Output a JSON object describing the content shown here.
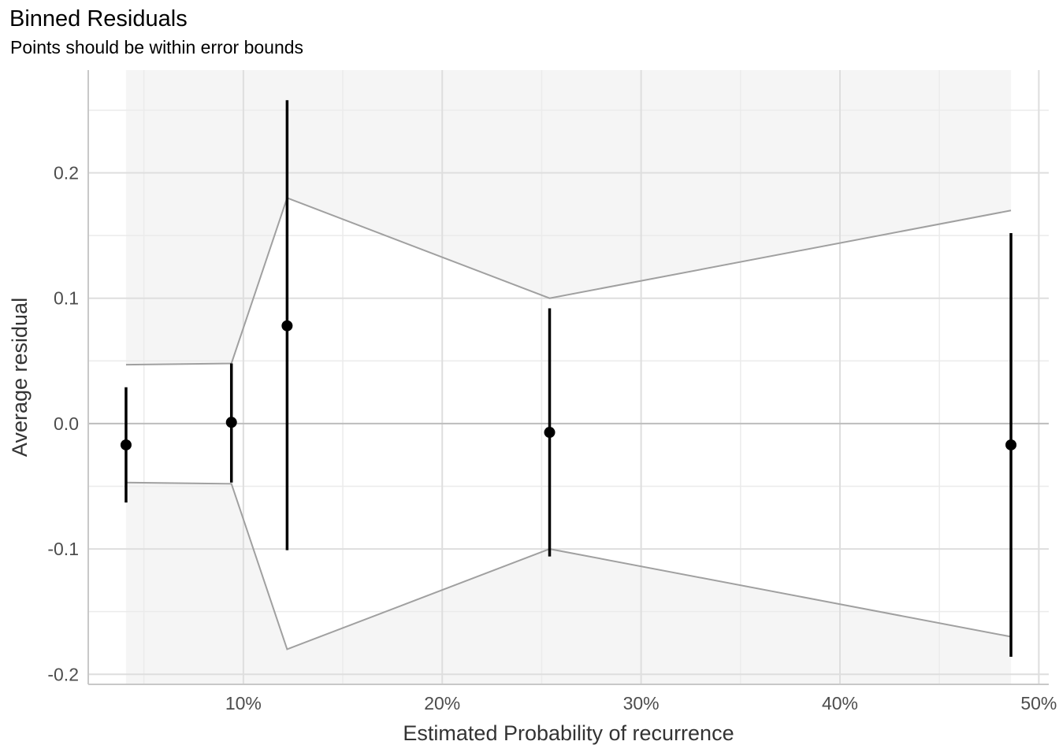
{
  "chart_data": {
    "type": "scatter",
    "title": "Binned Residuals",
    "subtitle": "Points should be within error bounds",
    "xlabel": "Estimated Probability of recurrence",
    "ylabel": "Average residual",
    "xlim": [
      0.022,
      0.505
    ],
    "ylim": [
      -0.208,
      0.282
    ],
    "x_ticks": [
      {
        "value": 0.1,
        "label": "10%"
      },
      {
        "value": 0.2,
        "label": "20%"
      },
      {
        "value": 0.3,
        "label": "30%"
      },
      {
        "value": 0.4,
        "label": "40%"
      },
      {
        "value": 0.5,
        "label": "50%"
      }
    ],
    "y_ticks": [
      {
        "value": 0.2,
        "label": "0.2"
      },
      {
        "value": 0.1,
        "label": "0.1"
      },
      {
        "value": 0.0,
        "label": "0.0"
      },
      {
        "value": -0.1,
        "label": "-0.1"
      },
      {
        "value": -0.2,
        "label": "-0.2"
      }
    ],
    "grid": true,
    "points": [
      {
        "x": 0.041,
        "y": -0.017,
        "ymin": -0.063,
        "ymax": 0.029
      },
      {
        "x": 0.094,
        "y": 0.001,
        "ymin": -0.047,
        "ymax": 0.048
      },
      {
        "x": 0.122,
        "y": 0.078,
        "ymin": -0.101,
        "ymax": 0.258
      },
      {
        "x": 0.254,
        "y": -0.007,
        "ymin": -0.106,
        "ymax": 0.092
      },
      {
        "x": 0.486,
        "y": -0.017,
        "ymin": -0.186,
        "ymax": 0.152
      }
    ],
    "bounds": [
      {
        "x": 0.041,
        "lower": -0.047,
        "upper": 0.047
      },
      {
        "x": 0.094,
        "lower": -0.048,
        "upper": 0.048
      },
      {
        "x": 0.122,
        "lower": -0.18,
        "upper": 0.18
      },
      {
        "x": 0.254,
        "lower": -0.1,
        "upper": 0.1
      },
      {
        "x": 0.486,
        "lower": -0.17,
        "upper": 0.17
      }
    ],
    "colors": {
      "point": "#000000",
      "errorbar": "#000000",
      "bound_line": "#a0a0a0",
      "outside_band": "#f5f5f5",
      "grid_major": "#dedede",
      "grid_minor": "#ebebeb",
      "zero_line": "#bdbdbd"
    }
  }
}
